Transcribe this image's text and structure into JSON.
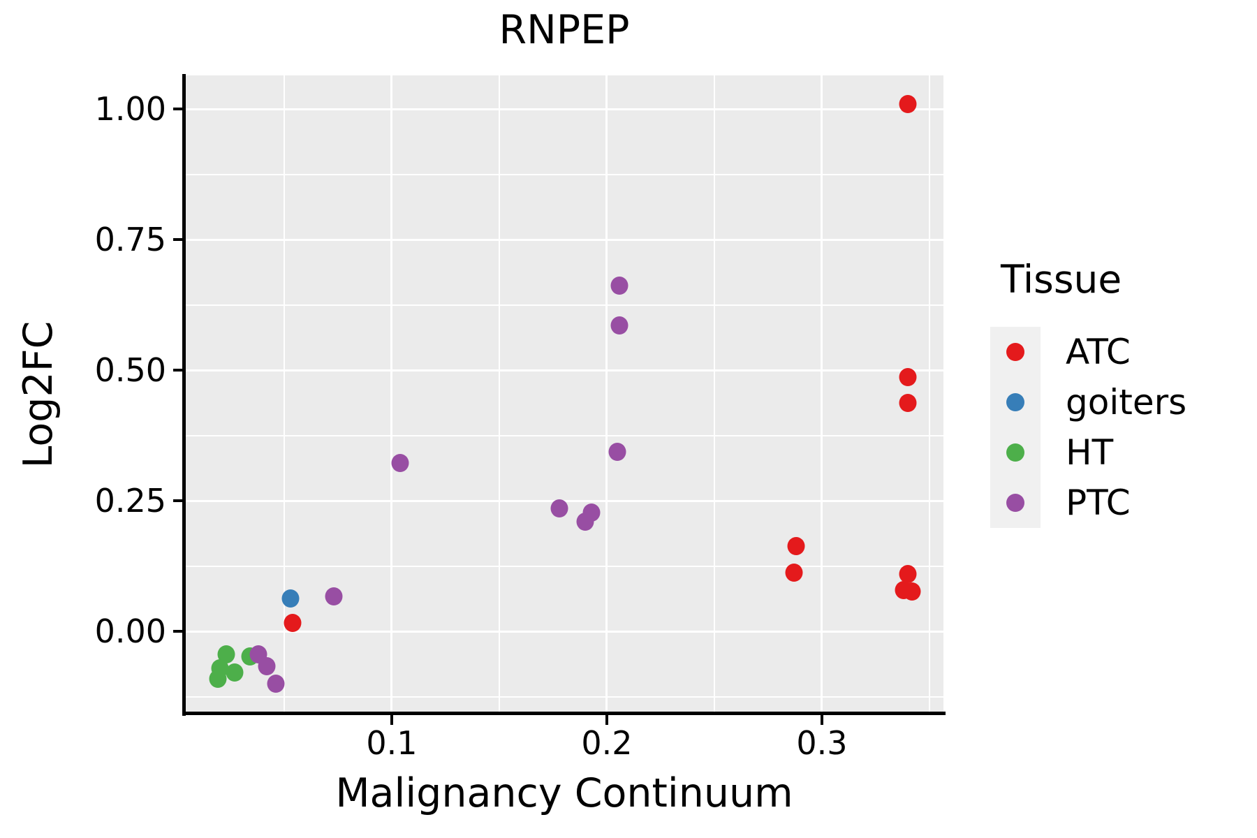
{
  "title": "RNPEP",
  "x_axis": {
    "label": "Malignancy Continuum",
    "tick_labels": [
      "0.1",
      "0.2",
      "0.3"
    ],
    "tick_values": [
      0.1,
      0.2,
      0.3
    ],
    "minor_tick_values": [
      0.05,
      0.15,
      0.25,
      0.35
    ],
    "range": [
      0.0039,
      0.3565
    ]
  },
  "y_axis": {
    "label": "Log2FC",
    "tick_labels": [
      "1.00",
      "0.75",
      "0.50",
      "0.25",
      "0.00"
    ],
    "tick_values": [
      1.0,
      0.75,
      0.5,
      0.25,
      0.0
    ],
    "minor_tick_values": [
      0.875,
      0.625,
      0.375,
      0.125,
      -0.125
    ],
    "range": [
      -0.1564,
      1.0642
    ]
  },
  "legend": {
    "title": "Tissue",
    "items": [
      {
        "label": "ATC",
        "color": "#E41A1C"
      },
      {
        "label": "goiters",
        "color": "#377EB8"
      },
      {
        "label": "HT",
        "color": "#4DAF4A"
      },
      {
        "label": "PTC",
        "color": "#984EA3"
      }
    ]
  },
  "colors": {
    "panel_background": "#EBEBEB",
    "gridline": "#FFFFFF",
    "axis": "#000000",
    "legend_key_background": "#F0F0F0"
  },
  "chart_data": {
    "type": "scatter",
    "title": "RNPEP",
    "xlabel": "Malignancy Continuum",
    "ylabel": "Log2FC",
    "xlim": [
      0.0039,
      0.3565
    ],
    "ylim": [
      -0.1564,
      1.0642
    ],
    "grid": "major-and-minor",
    "legend_position": "right",
    "series": [
      {
        "name": "ATC",
        "color": "#E41A1C",
        "points": [
          [
            0.34,
            1.009
          ],
          [
            0.34,
            0.487
          ],
          [
            0.34,
            0.437
          ],
          [
            0.288,
            0.163
          ],
          [
            0.287,
            0.112
          ],
          [
            0.34,
            0.11
          ],
          [
            0.338,
            0.079
          ],
          [
            0.342,
            0.076
          ],
          [
            0.054,
            0.016
          ]
        ]
      },
      {
        "name": "goiters",
        "color": "#377EB8",
        "points": [
          [
            0.053,
            0.063
          ]
        ]
      },
      {
        "name": "HT",
        "color": "#4DAF4A",
        "points": [
          [
            0.023,
            -0.044
          ],
          [
            0.02,
            -0.071
          ],
          [
            0.019,
            -0.091
          ],
          [
            0.027,
            -0.079
          ],
          [
            0.034,
            -0.048
          ]
        ]
      },
      {
        "name": "PTC",
        "color": "#984EA3",
        "points": [
          [
            0.206,
            0.662
          ],
          [
            0.206,
            0.586
          ],
          [
            0.205,
            0.344
          ],
          [
            0.178,
            0.235
          ],
          [
            0.193,
            0.227
          ],
          [
            0.19,
            0.21
          ],
          [
            0.104,
            0.322
          ],
          [
            0.073,
            0.067
          ],
          [
            0.038,
            -0.044
          ],
          [
            0.042,
            -0.067
          ],
          [
            0.046,
            -0.1
          ]
        ]
      }
    ]
  }
}
